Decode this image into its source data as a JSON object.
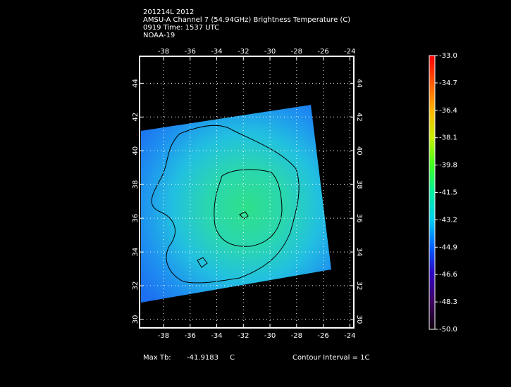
{
  "chart_data": {
    "type": "map",
    "title": [
      "201214L 2012",
      "AMSU-A Channel 7 (54.94GHz) Brightness Temperature (C)",
      "0919 Time: 1537 UTC",
      "NOAA-19"
    ],
    "xlim": [
      -39.8,
      -23.7
    ],
    "xticks": [
      -38,
      -36,
      -34,
      -32,
      -30,
      -28,
      -26,
      -24
    ],
    "ylim": [
      29.5,
      45.6
    ],
    "yticks": [
      30,
      32,
      34,
      36,
      38,
      40,
      42,
      44
    ],
    "grid": true,
    "colorbar": {
      "lim": [
        -50,
        -33
      ],
      "ticks": [
        {
          "value": -33,
          "label": "-33.0"
        },
        -34.7,
        -36.4,
        -38.1,
        -39.8,
        -41.5,
        -43.2,
        -44.9,
        -46.6,
        -48.3,
        {
          "value": -50,
          "label": "-50.0"
        }
      ]
    },
    "max_tb_label": "Max Tb:",
    "max_tb": -41.9183,
    "max_tb_unit": "C",
    "contour_note": "Contour Interval = 1C"
  }
}
